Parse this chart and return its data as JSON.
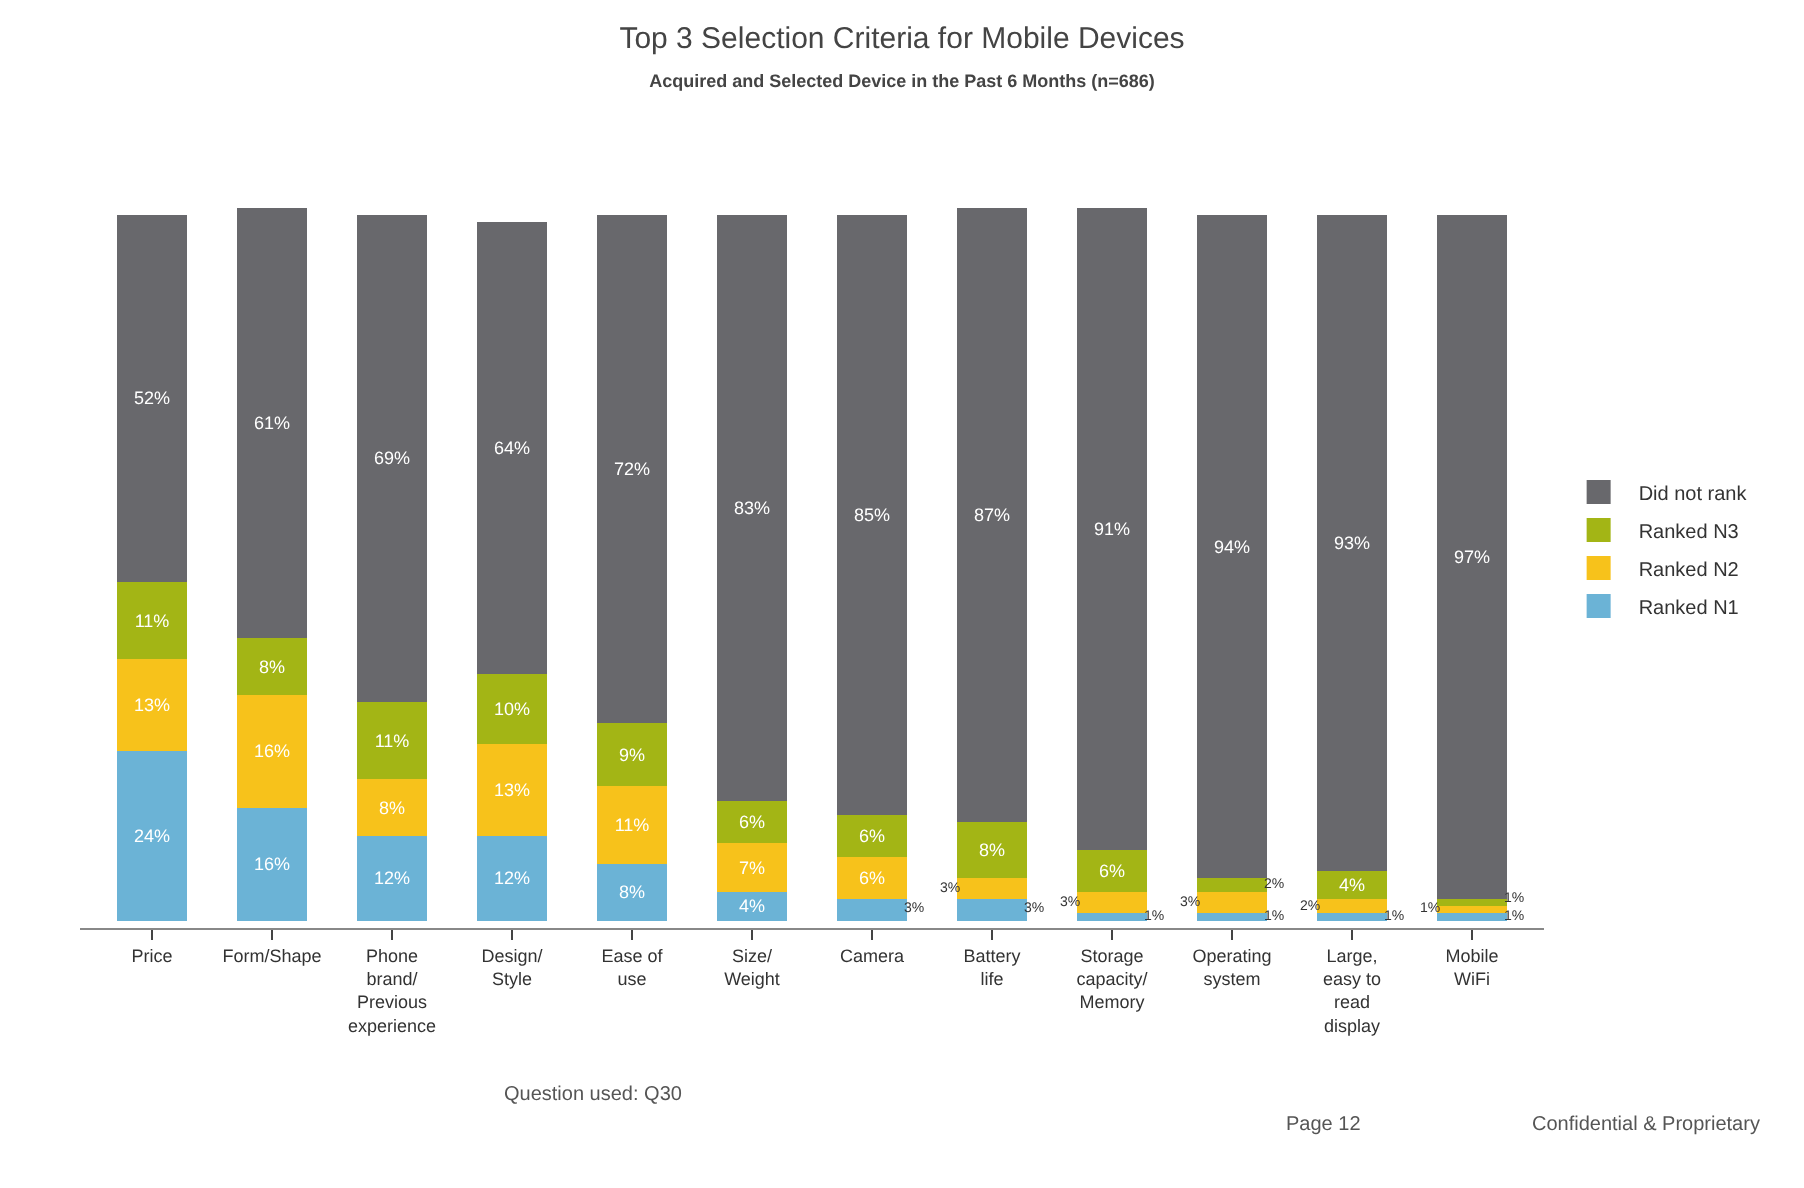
{
  "chart_data": {
    "type": "bar",
    "stacked": true,
    "title": "Top 3 Selection Criteria for Mobile Devices",
    "subtitle": "Acquired and Selected Device in the Past 6 Months (n=686)",
    "categories": [
      "Price",
      "Form/Shape",
      "Phone brand/ Previous experience",
      "Design/ Style",
      "Ease of use",
      "Size/ Weight",
      "Camera",
      "Battery life",
      "Storage capacity/ Memory",
      "Operating system",
      "Large, easy to read display",
      "Mobile WiFi"
    ],
    "series": [
      {
        "name": "Ranked N1",
        "color": "#6bb3d6",
        "values": [
          24,
          16,
          12,
          12,
          8,
          4,
          3,
          3,
          1,
          1,
          1,
          1
        ],
        "value_labels": [
          "24%",
          "16%",
          "12%",
          "12%",
          "8%",
          "4%",
          "3%",
          "3%",
          "1%",
          "1%",
          "1%",
          "1%"
        ]
      },
      {
        "name": "Ranked N2",
        "color": "#f7c21b",
        "values": [
          13,
          16,
          8,
          13,
          11,
          7,
          6,
          3,
          3,
          3,
          2,
          1
        ],
        "value_labels": [
          "13%",
          "16%",
          "8%",
          "13%",
          "11%",
          "7%",
          "6%",
          "3%",
          "3%",
          "3%",
          "2%",
          "1%"
        ]
      },
      {
        "name": "Ranked N3",
        "color": "#a3b515",
        "values": [
          11,
          8,
          11,
          10,
          9,
          6,
          6,
          8,
          6,
          2,
          4,
          1
        ],
        "value_labels": [
          "11%",
          "8%",
          "11%",
          "10%",
          "9%",
          "6%",
          "6%",
          "8%",
          "6%",
          "2%",
          "4%",
          "1%"
        ]
      },
      {
        "name": "Did not rank",
        "color": "#68686c",
        "values": [
          52,
          61,
          69,
          64,
          72,
          83,
          85,
          87,
          91,
          94,
          93,
          97
        ],
        "value_labels": [
          "52%",
          "61%",
          "69%",
          "64%",
          "72%",
          "83%",
          "85%",
          "87%",
          "91%",
          "94%",
          "93%",
          "97%"
        ]
      }
    ],
    "legend": "right",
    "tick_labels": "x",
    "annotations": [
      "Question used: Q30",
      "Page 12",
      "Confidential & Proprietary"
    ]
  }
}
